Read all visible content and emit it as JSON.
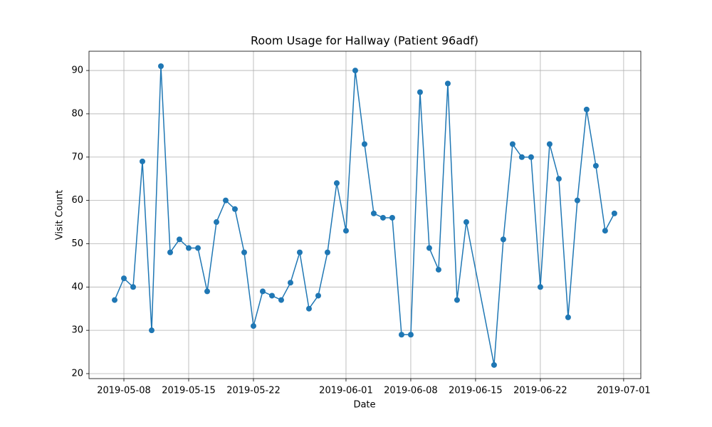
{
  "chart_data": {
    "type": "line",
    "title": "Room Usage for Hallway (Patient 96adf)",
    "x_label": "Date",
    "y_label": "Visit Count",
    "x": [
      "2019-05-07",
      "2019-05-08",
      "2019-05-09",
      "2019-05-10",
      "2019-05-11",
      "2019-05-12",
      "2019-05-13",
      "2019-05-14",
      "2019-05-15",
      "2019-05-16",
      "2019-05-17",
      "2019-05-18",
      "2019-05-19",
      "2019-05-20",
      "2019-05-21",
      "2019-05-22",
      "2019-05-23",
      "2019-05-24",
      "2019-05-25",
      "2019-05-26",
      "2019-05-27",
      "2019-05-28",
      "2019-05-29",
      "2019-05-30",
      "2019-05-31",
      "2019-06-01",
      "2019-06-02",
      "2019-06-03",
      "2019-06-04",
      "2019-06-05",
      "2019-06-06",
      "2019-06-07",
      "2019-06-08",
      "2019-06-09",
      "2019-06-10",
      "2019-06-11",
      "2019-06-12",
      "2019-06-13",
      "2019-06-14",
      "2019-06-17",
      "2019-06-18",
      "2019-06-19",
      "2019-06-20",
      "2019-06-21",
      "2019-06-22",
      "2019-06-23",
      "2019-06-24",
      "2019-06-25",
      "2019-06-26",
      "2019-06-27",
      "2019-06-28",
      "2019-06-29",
      "2019-06-30"
    ],
    "series": [
      {
        "name": "Hallway",
        "color": "#1f77b4",
        "values": [
          37,
          42,
          40,
          69,
          30,
          91,
          48,
          51,
          49,
          49,
          39,
          55,
          60,
          58,
          48,
          31,
          39,
          38,
          37,
          41,
          48,
          35,
          38,
          48,
          64,
          53,
          90,
          73,
          57,
          56,
          56,
          29,
          29,
          85,
          49,
          44,
          87,
          37,
          55,
          22,
          51,
          73,
          70,
          70,
          40,
          73,
          65,
          33,
          60,
          81,
          68,
          53,
          57
        ]
      }
    ],
    "xlim": [
      "2019-05-04T05:30Z",
      "2019-07-02T20:30Z"
    ],
    "xticks": [
      "2019-05-08",
      "2019-05-15",
      "2019-05-22",
      "2019-06-01",
      "2019-06-08",
      "2019-06-15",
      "2019-06-22",
      "2019-07-01"
    ],
    "ylim": [
      18.85,
      94.45
    ],
    "yticks": [
      20,
      30,
      40,
      50,
      60,
      70,
      80,
      90
    ],
    "grid": true
  }
}
